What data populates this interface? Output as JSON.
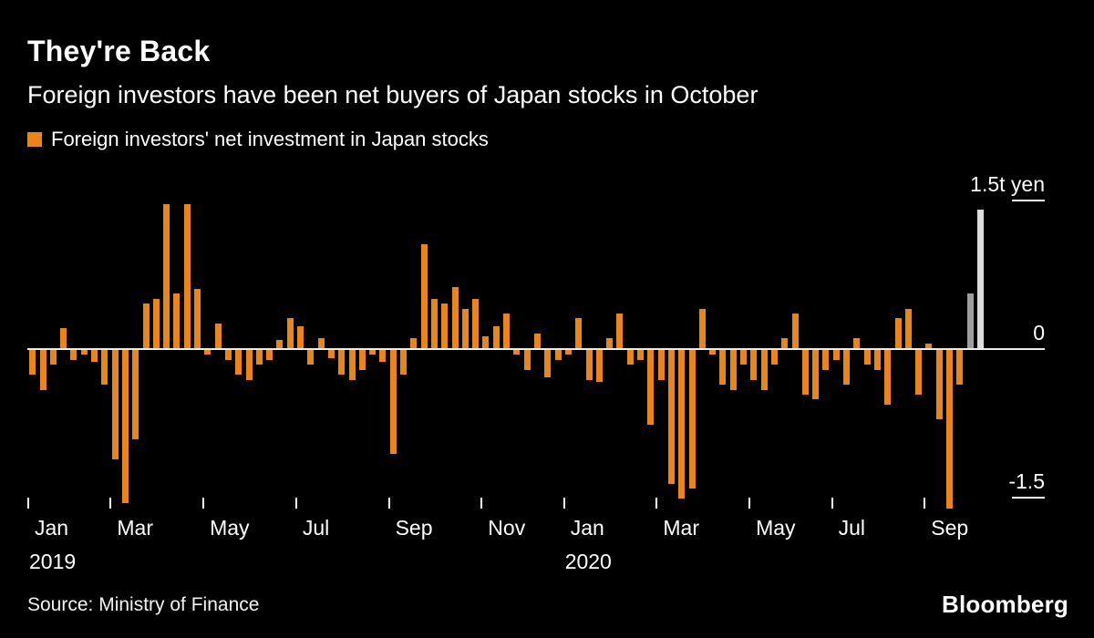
{
  "header": {
    "title": "They're Back",
    "subtitle": "Foreign investors have been net buyers of Japan stocks in October",
    "legend_label": "Foreign investors' net investment in Japan stocks"
  },
  "chart_data": {
    "type": "bar",
    "title": "They're Back",
    "subtitle": "Foreign investors have been net buyers of Japan stocks in October",
    "series_name": "Foreign investors' net investment in Japan stocks",
    "unit": "trillion yen, weekly",
    "ylim": [
      -1.7,
      1.6
    ],
    "grid": false,
    "legend_position": "top-left",
    "bar_color": "#E8861C",
    "highlight_bars": [
      {
        "index": 91,
        "color": "#9E9E9E"
      },
      {
        "index": 92,
        "color": "#DCDCDC"
      }
    ],
    "yticks": [
      {
        "value": 1.5,
        "label": "1.5t yen"
      },
      {
        "value": 0,
        "label": "0"
      },
      {
        "value": -1.5,
        "label": "-1.5"
      }
    ],
    "x_months": [
      {
        "label": "Jan",
        "week": 0,
        "year": "2019"
      },
      {
        "label": "Mar",
        "week": 8
      },
      {
        "label": "May",
        "week": 17
      },
      {
        "label": "Jul",
        "week": 26
      },
      {
        "label": "Sep",
        "week": 35
      },
      {
        "label": "Nov",
        "week": 44
      },
      {
        "label": "Jan",
        "week": 52,
        "year": "2020"
      },
      {
        "label": "Mar",
        "week": 61
      },
      {
        "label": "May",
        "week": 70
      },
      {
        "label": "Jul",
        "week": 78
      },
      {
        "label": "Sep",
        "week": 87
      }
    ],
    "total_slots": 96,
    "values": [
      -0.25,
      -0.4,
      -0.15,
      0.2,
      -0.1,
      -0.05,
      -0.12,
      -0.35,
      -1.1,
      -1.55,
      -0.9,
      0.45,
      0.5,
      1.45,
      0.55,
      1.45,
      0.6,
      -0.05,
      0.25,
      -0.1,
      -0.25,
      -0.3,
      -0.15,
      -0.1,
      0.08,
      0.3,
      0.22,
      -0.15,
      0.1,
      -0.08,
      -0.25,
      -0.3,
      -0.2,
      -0.05,
      -0.12,
      -1.05,
      -0.25,
      0.1,
      1.05,
      0.5,
      0.45,
      0.62,
      0.4,
      0.5,
      0.12,
      0.22,
      0.35,
      -0.05,
      -0.2,
      0.15,
      -0.28,
      -0.1,
      -0.05,
      0.3,
      -0.3,
      -0.32,
      0.1,
      0.35,
      -0.15,
      -0.1,
      -0.75,
      -0.3,
      -1.35,
      -1.5,
      -1.4,
      0.4,
      -0.05,
      -0.35,
      -0.4,
      -0.15,
      -0.3,
      -0.4,
      -0.15,
      0.1,
      0.35,
      -0.45,
      -0.5,
      -0.2,
      -0.1,
      -0.35,
      0.1,
      -0.15,
      -0.2,
      -0.55,
      0.3,
      0.4,
      -0.45,
      0.05,
      -0.7,
      -1.6,
      -0.35,
      0.55,
      1.4
    ]
  },
  "footer": {
    "source": "Source: Ministry of Finance",
    "brand": "Bloomberg"
  }
}
